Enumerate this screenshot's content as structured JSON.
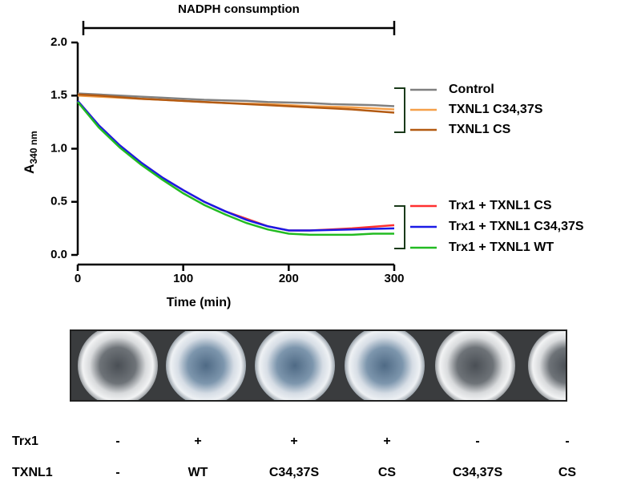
{
  "chart_data": {
    "type": "line",
    "annotation": "NADPH consumption",
    "xlabel": "Time (min)",
    "ylabel": "A",
    "ylabel_sub": "340 nm",
    "x": [
      0,
      20,
      40,
      60,
      80,
      100,
      120,
      140,
      160,
      180,
      200,
      220,
      240,
      260,
      280,
      300
    ],
    "xlim": [
      0,
      300
    ],
    "xticks": [
      0,
      100,
      200,
      300
    ],
    "ylim": [
      0,
      2
    ],
    "yticks": [
      {
        "value": 0,
        "label": "0.0"
      },
      {
        "value": 0.5,
        "label": "0.5"
      },
      {
        "value": 1,
        "label": "1.0"
      },
      {
        "value": 1.5,
        "label": "1.5"
      },
      {
        "value": 2,
        "label": "2.0"
      }
    ],
    "series": [
      {
        "name": "Control",
        "color": "#808080",
        "values": [
          1.52,
          1.51,
          1.5,
          1.49,
          1.48,
          1.47,
          1.46,
          1.455,
          1.45,
          1.44,
          1.435,
          1.43,
          1.42,
          1.415,
          1.41,
          1.4
        ]
      },
      {
        "name": "TXNL1 C34,37S",
        "color": "#f5a04a",
        "values": [
          1.5,
          1.49,
          1.48,
          1.47,
          1.46,
          1.45,
          1.44,
          1.43,
          1.425,
          1.42,
          1.41,
          1.4,
          1.395,
          1.39,
          1.38,
          1.37
        ]
      },
      {
        "name": "TXNL1 CS",
        "color": "#b35a12",
        "values": [
          1.51,
          1.5,
          1.485,
          1.47,
          1.46,
          1.45,
          1.44,
          1.43,
          1.42,
          1.41,
          1.4,
          1.39,
          1.38,
          1.37,
          1.355,
          1.34
        ]
      },
      {
        "name": "Trx1 + TXNL1 CS",
        "color": "#ff3030",
        "values": [
          1.45,
          1.22,
          1.03,
          0.87,
          0.73,
          0.61,
          0.5,
          0.41,
          0.34,
          0.27,
          0.23,
          0.23,
          0.24,
          0.25,
          0.265,
          0.28
        ]
      },
      {
        "name": "Trx1 + TXNL1 C34,37S",
        "color": "#1a1ae6",
        "values": [
          1.45,
          1.22,
          1.03,
          0.87,
          0.73,
          0.61,
          0.5,
          0.41,
          0.33,
          0.27,
          0.23,
          0.23,
          0.235,
          0.24,
          0.245,
          0.25
        ]
      },
      {
        "name": "Trx1 + TXNL1 WT",
        "color": "#22bb22",
        "values": [
          1.44,
          1.2,
          1.01,
          0.85,
          0.71,
          0.58,
          0.47,
          0.38,
          0.3,
          0.24,
          0.2,
          0.19,
          0.19,
          0.19,
          0.2,
          0.2
        ]
      }
    ]
  },
  "well_labels": {
    "rows": [
      [
        "Trx1",
        "-",
        "+",
        "+",
        "+",
        "-",
        "-"
      ],
      [
        "TXNL1",
        "-",
        "WT",
        "C34,37S",
        "CS",
        "C34,37S",
        "CS"
      ]
    ]
  }
}
